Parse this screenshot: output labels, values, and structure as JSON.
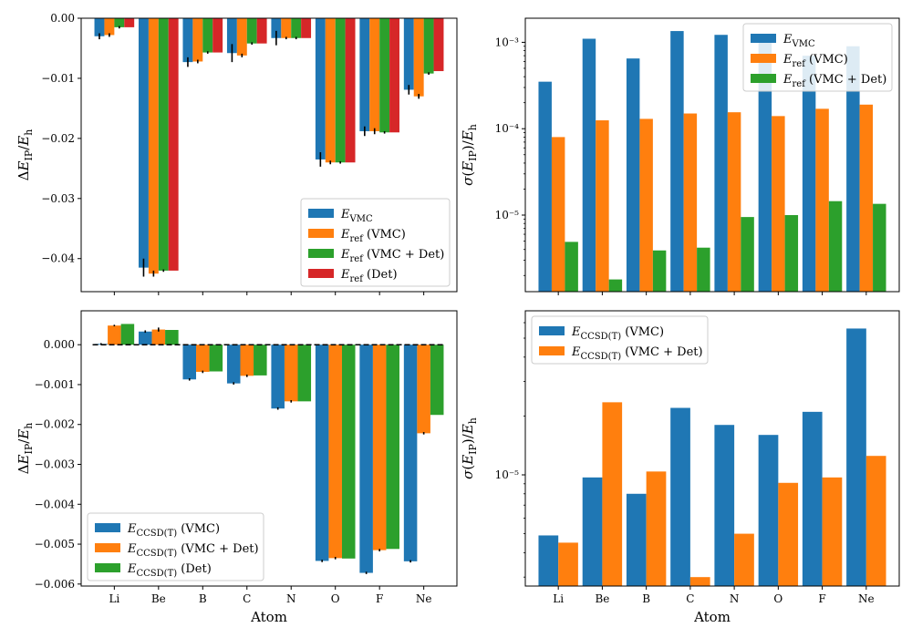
{
  "colors": {
    "blue": "#1f77b4",
    "orange": "#ff7f0e",
    "green": "#2ca02c",
    "red": "#d62728"
  },
  "chart_data": [
    {
      "id": "top-left",
      "type": "bar",
      "scale": "linear",
      "categories": [
        "Li",
        "Be",
        "B",
        "C",
        "N",
        "O",
        "F",
        "Ne"
      ],
      "ylim": [
        -0.0455,
        0.0
      ],
      "yticks": [
        0.0,
        -0.01,
        -0.02,
        -0.03,
        -0.04
      ],
      "ytick_labels": [
        "0.00",
        "−0.01",
        "−0.02",
        "−0.03",
        "−0.04"
      ],
      "ylabel": "ΔE_IP/E_h",
      "xlabel": "",
      "show_xtick_labels": false,
      "legend_loc": "lower-right",
      "series": [
        {
          "name": "E_VMC",
          "color": "blue",
          "values": [
            -0.003,
            -0.0415,
            -0.0073,
            -0.0058,
            -0.0033,
            -0.0235,
            -0.0188,
            -0.0119
          ],
          "errors": [
            0.0005,
            0.0015,
            0.0008,
            0.0015,
            0.0012,
            0.0012,
            0.0008,
            0.0008
          ]
        },
        {
          "name": "E_ref (VMC)",
          "color": "orange",
          "values": [
            -0.0028,
            -0.0425,
            -0.0072,
            -0.0062,
            -0.0033,
            -0.024,
            -0.0188,
            -0.013
          ],
          "errors": [
            0.0003,
            0.0005,
            0.0003,
            0.0003,
            0.0002,
            0.0003,
            0.0005,
            0.0004
          ]
        },
        {
          "name": "E_ref (VMC + Det)",
          "color": "green",
          "values": [
            -0.0015,
            -0.042,
            -0.0057,
            -0.0042,
            -0.0033,
            -0.024,
            -0.019,
            -0.0092
          ],
          "errors": [
            0.0002,
            0.0002,
            0.0002,
            0.0002,
            0.0002,
            0.0002,
            0.0002,
            0.0002
          ]
        },
        {
          "name": "E_ref (Det)",
          "color": "red",
          "values": [
            -0.0015,
            -0.042,
            -0.0057,
            -0.0042,
            -0.0033,
            -0.024,
            -0.019,
            -0.0088
          ],
          "errors": []
        }
      ]
    },
    {
      "id": "top-right",
      "type": "bar",
      "scale": "log",
      "categories": [
        "Li",
        "Be",
        "B",
        "C",
        "N",
        "O",
        "F",
        "Ne"
      ],
      "ylim": [
        1.3e-06,
        0.0019
      ],
      "yticks": [
        1e-05,
        0.0001,
        0.001
      ],
      "ytick_labels": [
        "10⁻⁵",
        "10⁻⁴",
        "10⁻³"
      ],
      "ylabel": "σ(E_IP)/E_h",
      "xlabel": "",
      "show_xtick_labels": false,
      "legend_loc": "top-right",
      "series": [
        {
          "name": "E_VMC",
          "color": "blue",
          "values": [
            0.00035,
            0.0011,
            0.00065,
            0.00135,
            0.00122,
            0.0011,
            0.0007,
            0.0009
          ]
        },
        {
          "name": "E_ref (VMC)",
          "color": "orange",
          "values": [
            8e-05,
            0.000125,
            0.00013,
            0.00015,
            0.000155,
            0.00014,
            0.00017,
            0.00019
          ]
        },
        {
          "name": "E_ref (VMC + Det)",
          "color": "green",
          "values": [
            4.9e-06,
            1.8e-06,
            3.9e-06,
            4.2e-06,
            9.5e-06,
            1e-05,
            1.45e-05,
            1.35e-05
          ]
        }
      ]
    },
    {
      "id": "bottom-left",
      "type": "bar",
      "scale": "linear",
      "categories": [
        "Li",
        "Be",
        "B",
        "C",
        "N",
        "O",
        "F",
        "Ne"
      ],
      "ylim": [
        -0.00605,
        0.00085
      ],
      "yticks": [
        0.0,
        -0.001,
        -0.002,
        -0.003,
        -0.004,
        -0.005,
        -0.006
      ],
      "ytick_labels": [
        "0.000",
        "−0.001",
        "−0.002",
        "−0.003",
        "−0.004",
        "−0.005",
        "−0.006"
      ],
      "ylabel": "ΔE_IP/E_h",
      "xlabel": "Atom",
      "show_xtick_labels": true,
      "zero_line": true,
      "legend_loc": "lower-left",
      "series": [
        {
          "name": "E_CCSD(T) (VMC)",
          "color": "blue",
          "values": [
            2e-05,
            0.00033,
            -0.00087,
            -0.00097,
            -0.0016,
            -0.00542,
            -0.00572,
            -0.00543
          ],
          "errors": [
            2e-05,
            3e-05,
            3e-05,
            3e-05,
            3e-05,
            3e-05,
            3e-05,
            3e-05
          ]
        },
        {
          "name": "E_CCSD(T) (VMC + Det)",
          "color": "orange",
          "values": [
            0.00048,
            0.00038,
            -0.00068,
            -0.00078,
            -0.00142,
            -0.00535,
            -0.00515,
            -0.00222
          ],
          "errors": [
            2e-05,
            5e-05,
            3e-05,
            3e-05,
            3e-05,
            3e-05,
            3e-05,
            3e-05
          ]
        },
        {
          "name": "E_CCSD(T) (Det)",
          "color": "green",
          "values": [
            0.00052,
            0.00037,
            -0.00067,
            -0.00077,
            -0.00142,
            -0.00536,
            -0.00512,
            -0.00176
          ],
          "errors": []
        }
      ]
    },
    {
      "id": "bottom-right",
      "type": "bar",
      "scale": "log",
      "categories": [
        "Li",
        "Be",
        "B",
        "C",
        "N",
        "O",
        "F",
        "Ne"
      ],
      "ylim": [
        2.7e-06,
        6.9e-05
      ],
      "yticks": [
        1e-05
      ],
      "ytick_labels": [
        "10⁻⁵"
      ],
      "ylabel": "σ(E_IP)/E_h",
      "xlabel": "Atom",
      "show_xtick_labels": true,
      "legend_loc": "top-left",
      "series": [
        {
          "name": "E_CCSD(T) (VMC)",
          "color": "blue",
          "values": [
            4.9e-06,
            9.7e-06,
            8e-06,
            2.2e-05,
            1.8e-05,
            1.6e-05,
            2.1e-05,
            5.6e-05
          ]
        },
        {
          "name": "E_CCSD(T) (VMC + Det)",
          "color": "orange",
          "values": [
            4.5e-06,
            2.35e-05,
            1.04e-05,
            3e-06,
            5e-06,
            9.1e-06,
            9.7e-06,
            1.25e-05
          ]
        }
      ]
    }
  ]
}
